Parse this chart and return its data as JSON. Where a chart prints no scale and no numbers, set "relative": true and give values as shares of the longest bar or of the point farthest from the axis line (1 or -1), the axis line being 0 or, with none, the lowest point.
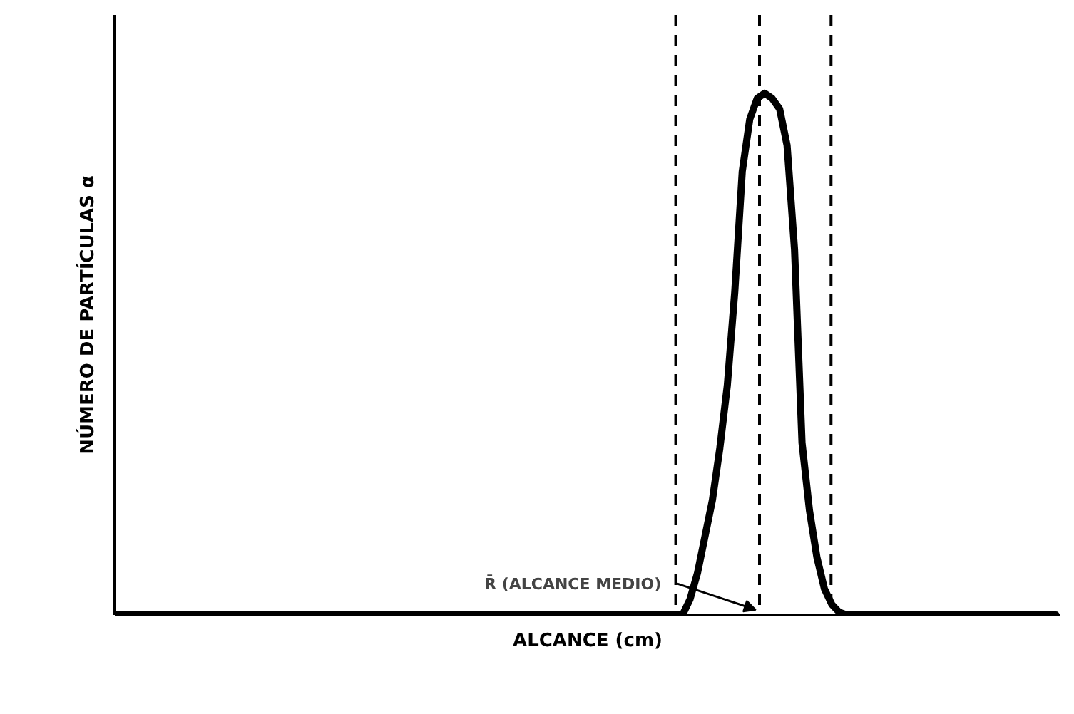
{
  "chart_data": {
    "type": "line",
    "relative": true,
    "xlabel": "ALCANCE (cm)",
    "ylabel": "NÚMERO DE PARTÍCULAS α",
    "categories": [
      null,
      null,
      null,
      null,
      null,
      null,
      null,
      null,
      null,
      null,
      null,
      null,
      null,
      null,
      null,
      null,
      null,
      null,
      null,
      null,
      null,
      null,
      null,
      null,
      null,
      null,
      null,
      null,
      null,
      null,
      null,
      null,
      null,
      null,
      null,
      null,
      null,
      null,
      null,
      null,
      null,
      null,
      null,
      null,
      null,
      null,
      null,
      null,
      null,
      null,
      null,
      null,
      null,
      null,
      null,
      null,
      null,
      null,
      null,
      null,
      null,
      null,
      null,
      null,
      null,
      null,
      null,
      null,
      null,
      null,
      null,
      null,
      null,
      null,
      null,
      null,
      null,
      null,
      null,
      null,
      null,
      null,
      null,
      null,
      null,
      null,
      null,
      null,
      null,
      null,
      null,
      null,
      null,
      null,
      null,
      null,
      null,
      null,
      null,
      null,
      null,
      null,
      null,
      null,
      null,
      null,
      null,
      null,
      null,
      null,
      null,
      null,
      null,
      null,
      null,
      null,
      null,
      null,
      null,
      null,
      null,
      null,
      null,
      null,
      null,
      null,
      null
    ],
    "series": [
      {
        "color": "#000000",
        "values": [
          0,
          0,
          0,
          0,
          0,
          0,
          0,
          0,
          0,
          0,
          0,
          0,
          0,
          0,
          0,
          0,
          0,
          0,
          0,
          0,
          0,
          0,
          0,
          0,
          0,
          0,
          0,
          0,
          0,
          0,
          0,
          0,
          0,
          0,
          0,
          0,
          0,
          0,
          0,
          0,
          0,
          0,
          0,
          0,
          0,
          0,
          0,
          0,
          0,
          0,
          0,
          0,
          0,
          0,
          0,
          0,
          0,
          0,
          0,
          0,
          0,
          0,
          0,
          0,
          0,
          0,
          0,
          0,
          0,
          0,
          0,
          0,
          0,
          0,
          0,
          0,
          0,
          0.03,
          0.08,
          0.15,
          0.22,
          0.32,
          0.44,
          0.62,
          0.85,
          0.95,
          0.99,
          1,
          0.99,
          0.97,
          0.9,
          0.7,
          0.33,
          0.2,
          0.11,
          0.05,
          0.02,
          0.005,
          0,
          0,
          0,
          0,
          0,
          0,
          0,
          0,
          0,
          0,
          0,
          0,
          0,
          0,
          0,
          0,
          0,
          0,
          0,
          0,
          0,
          0,
          0,
          0,
          0,
          0,
          0,
          0,
          0
        ]
      }
    ],
    "annotations": [
      "R̄ (ALCANCE MEDIO)"
    ],
    "line_style": "solid",
    "marker": "none",
    "grid": false
  }
}
